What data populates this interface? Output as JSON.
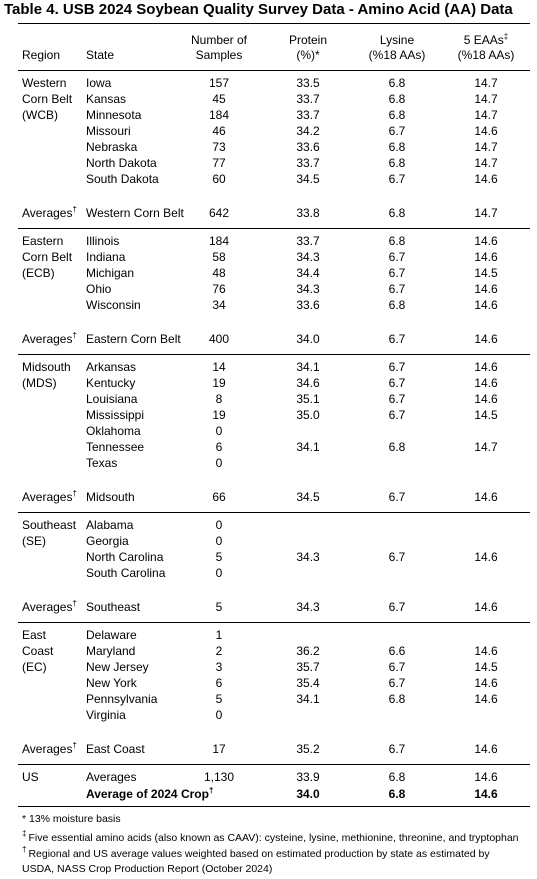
{
  "title": "Table 4. USB 2024 Soybean Quality Survey Data - Amino Acid (AA) Data",
  "header": {
    "region": "Region",
    "state": "State",
    "samples": [
      "Number of",
      "Samples"
    ],
    "protein": [
      "Protein",
      "(%)*"
    ],
    "lysine": [
      "Lysine",
      "(%18 AAs)"
    ],
    "eaa": {
      "line1": "5 EAAs",
      "sup": "‡",
      "line2": "(%18 AAs)"
    }
  },
  "groups": [
    {
      "region": [
        "Western",
        "Corn Belt",
        "(WCB)"
      ],
      "rows": [
        [
          "Iowa",
          "157",
          "33.5",
          "6.8",
          "14.7"
        ],
        [
          "Kansas",
          "45",
          "33.7",
          "6.8",
          "14.7"
        ],
        [
          "Minnesota",
          "184",
          "33.7",
          "6.8",
          "14.7"
        ],
        [
          "Missouri",
          "46",
          "34.2",
          "6.7",
          "14.6"
        ],
        [
          "Nebraska",
          "73",
          "33.6",
          "6.8",
          "14.7"
        ],
        [
          "North Dakota",
          "77",
          "33.7",
          "6.8",
          "14.7"
        ],
        [
          "South Dakota",
          "60",
          "34.5",
          "6.7",
          "14.6"
        ]
      ],
      "average": {
        "label": "Averages",
        "sup": "†",
        "name": "Western Corn Belt",
        "values": [
          "642",
          "33.8",
          "6.8",
          "14.7"
        ]
      }
    },
    {
      "region": [
        "Eastern",
        "Corn Belt",
        "(ECB)"
      ],
      "rows": [
        [
          "Illinois",
          "184",
          "33.7",
          "6.8",
          "14.6"
        ],
        [
          "Indiana",
          "58",
          "34.3",
          "6.7",
          "14.6"
        ],
        [
          "Michigan",
          "48",
          "34.4",
          "6.7",
          "14.5"
        ],
        [
          "Ohio",
          "76",
          "34.3",
          "6.7",
          "14.6"
        ],
        [
          "Wisconsin",
          "34",
          "33.6",
          "6.8",
          "14.6"
        ]
      ],
      "average": {
        "label": "Averages",
        "sup": "†",
        "name": "Eastern Corn Belt",
        "values": [
          "400",
          "34.0",
          "6.7",
          "14.6"
        ]
      }
    },
    {
      "region": [
        "Midsouth",
        "(MDS)"
      ],
      "rows": [
        [
          "Arkansas",
          "14",
          "34.1",
          "6.7",
          "14.6"
        ],
        [
          "Kentucky",
          "19",
          "34.6",
          "6.7",
          "14.6"
        ],
        [
          "Louisiana",
          "8",
          "35.1",
          "6.7",
          "14.6"
        ],
        [
          "Mississippi",
          "19",
          "35.0",
          "6.7",
          "14.5"
        ],
        [
          "Oklahoma",
          "0"
        ],
        [
          "Tennessee",
          "6",
          "34.1",
          "6.8",
          "14.7"
        ],
        [
          "Texas",
          "0"
        ]
      ],
      "average": {
        "label": "Averages",
        "sup": "†",
        "name": "Midsouth",
        "values": [
          "66",
          "34.5",
          "6.7",
          "14.6"
        ]
      }
    },
    {
      "region": [
        "Southeast",
        "(SE)"
      ],
      "rows": [
        [
          "Alabama",
          "0"
        ],
        [
          "Georgia",
          "0"
        ],
        [
          "North Carolina",
          "5",
          "34.3",
          "6.7",
          "14.6"
        ],
        [
          "South Carolina",
          "0"
        ]
      ],
      "average": {
        "label": "Averages",
        "sup": "†",
        "name": "Southeast",
        "values": [
          "5",
          "34.3",
          "6.7",
          "14.6"
        ]
      }
    },
    {
      "region": [
        "East",
        "Coast",
        "(EC)"
      ],
      "rows": [
        [
          "Delaware",
          "1"
        ],
        [
          "Maryland",
          "2",
          "36.2",
          "6.6",
          "14.6"
        ],
        [
          "New Jersey",
          "3",
          "35.7",
          "6.7",
          "14.5"
        ],
        [
          "New York",
          "6",
          "35.4",
          "6.7",
          "14.6"
        ],
        [
          "Pennsylvania",
          "5",
          "34.1",
          "6.8",
          "14.6"
        ],
        [
          "Virginia",
          "0"
        ]
      ],
      "average": {
        "label": "Averages",
        "sup": "†",
        "name": "East Coast",
        "values": [
          "17",
          "35.2",
          "6.7",
          "14.6"
        ]
      }
    }
  ],
  "us": {
    "region": "US",
    "rows": [
      {
        "label": "Averages",
        "values": [
          "1,130",
          "33.9",
          "6.8",
          "14.6"
        ]
      },
      {
        "label": "Average of 2024 Crop",
        "sup": "†",
        "values": [
          "34.0",
          "6.8",
          "14.6"
        ]
      }
    ]
  },
  "footnotes": [
    {
      "text": "* 13% moisture basis"
    },
    {
      "mark": "‡",
      "lines": [
        "Five essential amino acids (also known as CAAV): cysteine, lysine, methionine, threonine, and tryptophan"
      ]
    },
    {
      "mark": "†",
      "lines": [
        "Regional and US average values weighted based on estimated production by state as estimated by",
        "USDA, NASS Crop Production Report (October 2024)"
      ]
    }
  ]
}
